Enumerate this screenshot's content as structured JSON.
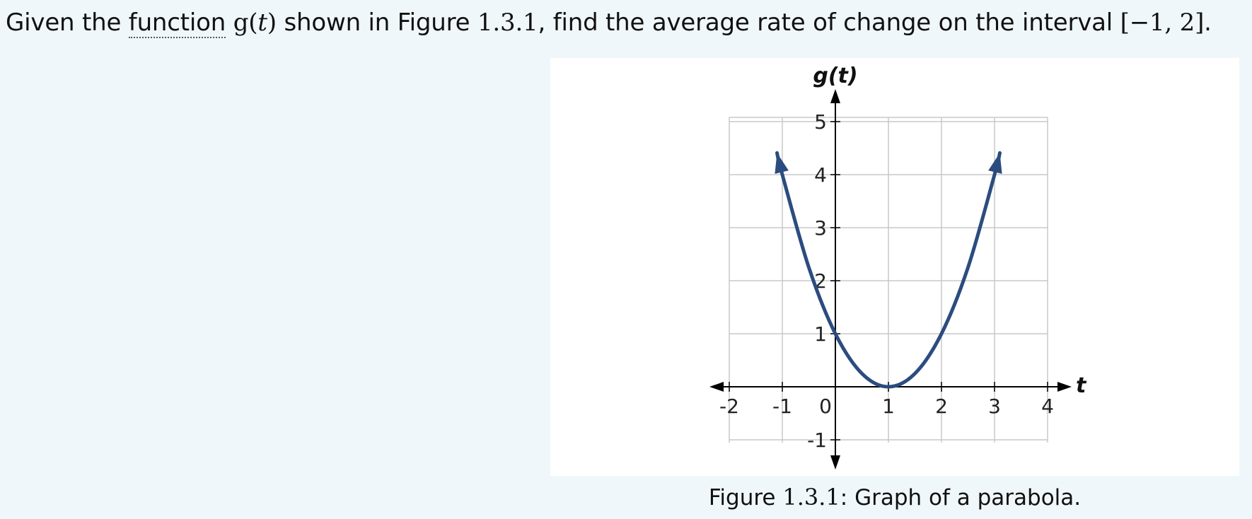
{
  "question": {
    "prefix": "Given the ",
    "term": "function",
    "func_name": "g",
    "func_var": "t",
    "after_func": " shown in Figure ",
    "figure_ref": "1.3.1",
    "middle": ", find the average rate of change on the interval ",
    "interval": "[−1, 2]",
    "suffix": "."
  },
  "caption": {
    "label": "Figure ",
    "number": "1.3.1",
    "text": ": Graph of a parabola."
  },
  "colors": {
    "curve": "#2b4c7e",
    "grid": "#c8c8c8",
    "axis": "#000000",
    "background": "#ffffff"
  },
  "chart_data": {
    "type": "line",
    "title": "",
    "xlabel": "t",
    "ylabel": "g(t)",
    "xlim": [
      -2,
      4
    ],
    "ylim": [
      -1,
      5
    ],
    "grid": true,
    "x_ticks": [
      {
        "value": -2,
        "label": "-2"
      },
      {
        "value": -1,
        "label": "-1"
      },
      {
        "value": 0,
        "label": "0"
      },
      {
        "value": 1,
        "label": "1"
      },
      {
        "value": 2,
        "label": "2"
      },
      {
        "value": 3,
        "label": "3"
      },
      {
        "value": 4,
        "label": "4"
      }
    ],
    "y_ticks": [
      {
        "value": -1,
        "label": "-1"
      },
      {
        "value": 1,
        "label": "1"
      },
      {
        "value": 2,
        "label": "2"
      },
      {
        "value": 3,
        "label": "3"
      },
      {
        "value": 4,
        "label": "4"
      },
      {
        "value": 5,
        "label": "5"
      }
    ],
    "series": [
      {
        "x": [
          -1.1,
          -1,
          -0.5,
          0,
          0.5,
          1,
          1.5,
          2,
          2.5,
          3,
          3.1
        ],
        "y": [
          4.41,
          4,
          2.25,
          1,
          0.25,
          0,
          0.25,
          1,
          2.25,
          4,
          4.41
        ],
        "arrow_ends": true
      }
    ]
  }
}
